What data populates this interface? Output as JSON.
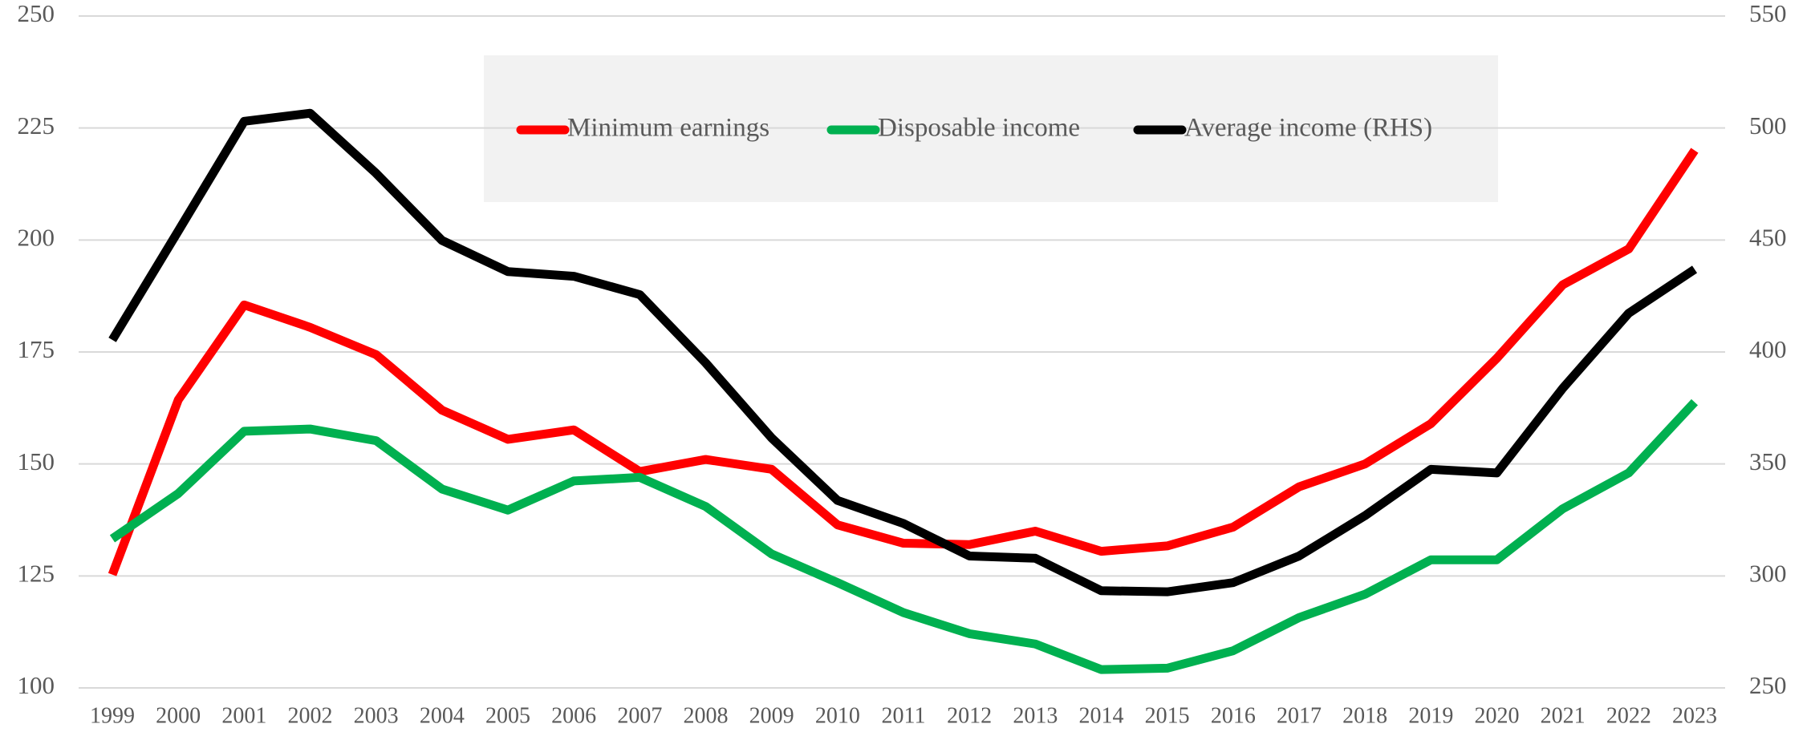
{
  "chart_data": {
    "type": "line",
    "categories": [
      "1999",
      "2000",
      "2001",
      "2002",
      "2003",
      "2004",
      "2005",
      "2006",
      "2007",
      "2008",
      "2009",
      "2010",
      "2011",
      "2012",
      "2013",
      "2014",
      "2015",
      "2016",
      "2017",
      "2018",
      "2019",
      "2020",
      "2021",
      "2022",
      "2023"
    ],
    "series": [
      {
        "name": "Minimum earnings",
        "color": "#ff0000",
        "values": [
          125.3,
          164.3,
          185.5,
          180.5,
          174.4,
          162,
          155.5,
          157.6,
          148.3,
          151,
          148.8,
          136.4,
          132.3,
          132,
          135,
          130.5,
          131.7,
          135.9,
          144.9,
          150,
          159,
          173.6,
          190,
          198,
          220
        ]
      },
      {
        "name": "Disposable income",
        "color": "#00b050",
        "values": [
          133.3,
          143.4,
          157.3,
          157.8,
          155.2,
          144.4,
          139.7,
          146.2,
          147,
          140.5,
          129.9,
          123.5,
          116.8,
          112.1,
          109.8,
          104.1,
          104.4,
          108.3,
          115.7,
          120.9,
          128.6,
          128.6,
          140,
          148,
          163.8
        ]
      },
      {
        "name": "Average income (RHS)",
        "color": "#000000",
        "axis": "y2",
        "values": [
          405.4,
          454,
          503,
          506.6,
          479.8,
          449.8,
          435.9,
          433.8,
          425.6,
          395.1,
          361.6,
          333.7,
          323.4,
          308.9,
          307.9,
          293.4,
          292.9,
          297,
          308.9,
          326.9,
          347.6,
          346,
          383.8,
          417.3,
          436.9
        ]
      }
    ],
    "ylim": [
      100,
      250
    ],
    "yticks": [
      100,
      125,
      150,
      175,
      200,
      225,
      250
    ],
    "y2lim": [
      250,
      550
    ],
    "y2ticks": [
      250,
      300,
      350,
      400,
      450,
      500,
      550
    ],
    "grid": true,
    "legend": "top"
  }
}
